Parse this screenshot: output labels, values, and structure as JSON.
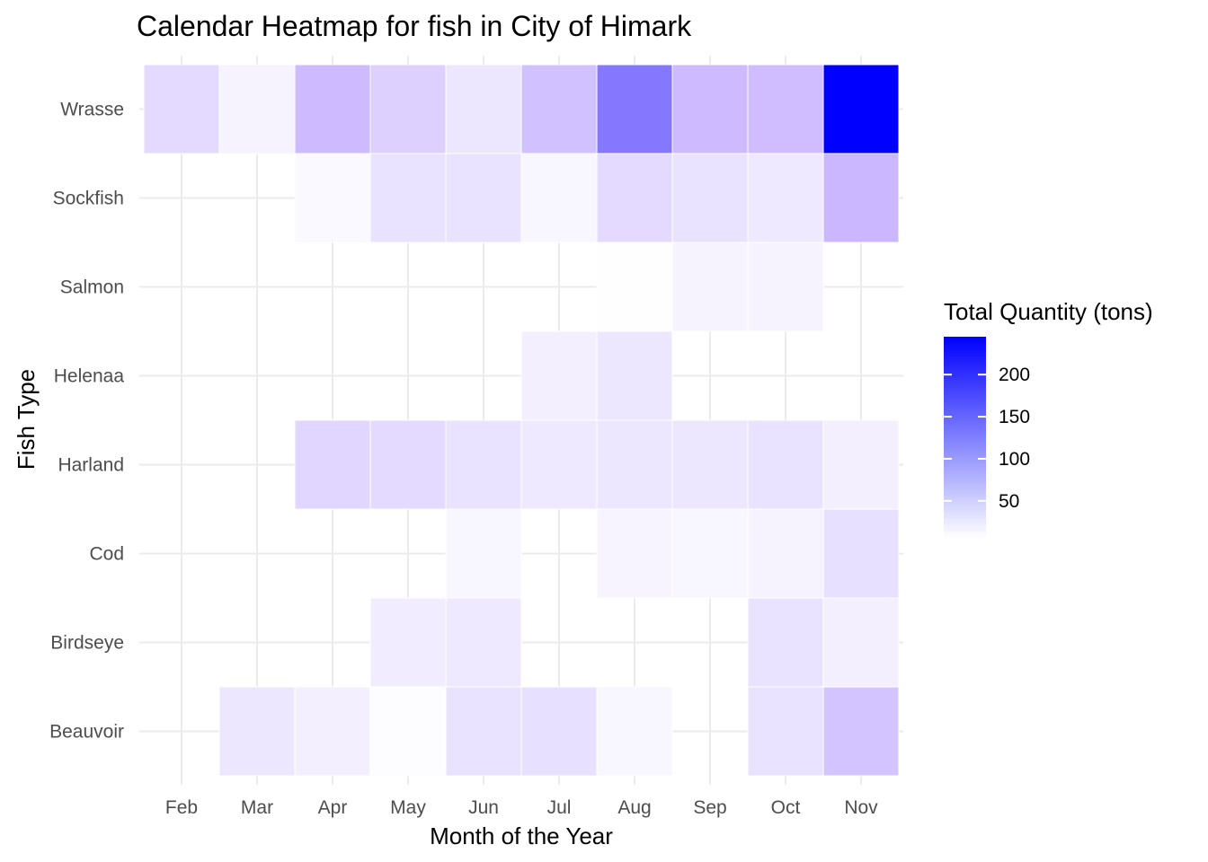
{
  "chart_data": {
    "type": "heatmap",
    "title": "Calendar Heatmap for fish in City of Himark",
    "xlabel": "Month of the Year",
    "ylabel": "Fish Type",
    "x_categories": [
      "Feb",
      "Mar",
      "Apr",
      "May",
      "Jun",
      "Jul",
      "Aug",
      "Sep",
      "Oct",
      "Nov"
    ],
    "y_categories": [
      "Beauvoir",
      "Birdseye",
      "Cod",
      "Harland",
      "Helenaa",
      "Salmon",
      "Sockfish",
      "Wrasse"
    ],
    "grid": true,
    "cells": [
      {
        "y": "Wrasse",
        "x": "Feb",
        "value": 65
      },
      {
        "y": "Wrasse",
        "x": "Mar",
        "value": 25
      },
      {
        "y": "Wrasse",
        "x": "Apr",
        "value": 115
      },
      {
        "y": "Wrasse",
        "x": "May",
        "value": 80
      },
      {
        "y": "Wrasse",
        "x": "Jun",
        "value": 45
      },
      {
        "y": "Wrasse",
        "x": "Jul",
        "value": 105
      },
      {
        "y": "Wrasse",
        "x": "Aug",
        "value": 165
      },
      {
        "y": "Wrasse",
        "x": "Sep",
        "value": 115
      },
      {
        "y": "Wrasse",
        "x": "Oct",
        "value": 110
      },
      {
        "y": "Wrasse",
        "x": "Nov",
        "value": 245
      },
      {
        "y": "Sockfish",
        "x": "Apr",
        "value": 15
      },
      {
        "y": "Sockfish",
        "x": "May",
        "value": 50
      },
      {
        "y": "Sockfish",
        "x": "Jun",
        "value": 50
      },
      {
        "y": "Sockfish",
        "x": "Jul",
        "value": 20
      },
      {
        "y": "Sockfish",
        "x": "Aug",
        "value": 65
      },
      {
        "y": "Sockfish",
        "x": "Sep",
        "value": 50
      },
      {
        "y": "Sockfish",
        "x": "Oct",
        "value": 40
      },
      {
        "y": "Sockfish",
        "x": "Nov",
        "value": 120
      },
      {
        "y": "Salmon",
        "x": "Aug",
        "value": 8
      },
      {
        "y": "Salmon",
        "x": "Sep",
        "value": 25
      },
      {
        "y": "Salmon",
        "x": "Oct",
        "value": 25
      },
      {
        "y": "Helenaa",
        "x": "Jul",
        "value": 30
      },
      {
        "y": "Helenaa",
        "x": "Aug",
        "value": 45
      },
      {
        "y": "Harland",
        "x": "Apr",
        "value": 70
      },
      {
        "y": "Harland",
        "x": "May",
        "value": 65
      },
      {
        "y": "Harland",
        "x": "Jun",
        "value": 50
      },
      {
        "y": "Harland",
        "x": "Jul",
        "value": 40
      },
      {
        "y": "Harland",
        "x": "Aug",
        "value": 45
      },
      {
        "y": "Harland",
        "x": "Sep",
        "value": 45
      },
      {
        "y": "Harland",
        "x": "Oct",
        "value": 50
      },
      {
        "y": "Harland",
        "x": "Nov",
        "value": 30
      },
      {
        "y": "Cod",
        "x": "Jun",
        "value": 20
      },
      {
        "y": "Cod",
        "x": "Aug",
        "value": 22
      },
      {
        "y": "Cod",
        "x": "Sep",
        "value": 20
      },
      {
        "y": "Cod",
        "x": "Oct",
        "value": 25
      },
      {
        "y": "Cod",
        "x": "Nov",
        "value": 55
      },
      {
        "y": "Birdseye",
        "x": "May",
        "value": 35
      },
      {
        "y": "Birdseye",
        "x": "Jun",
        "value": 40
      },
      {
        "y": "Birdseye",
        "x": "Oct",
        "value": 50
      },
      {
        "y": "Birdseye",
        "x": "Nov",
        "value": 30
      },
      {
        "y": "Beauvoir",
        "x": "Mar",
        "value": 45
      },
      {
        "y": "Beauvoir",
        "x": "Apr",
        "value": 30
      },
      {
        "y": "Beauvoir",
        "x": "May",
        "value": 10
      },
      {
        "y": "Beauvoir",
        "x": "Jun",
        "value": 50
      },
      {
        "y": "Beauvoir",
        "x": "Jul",
        "value": 55
      },
      {
        "y": "Beauvoir",
        "x": "Aug",
        "value": 20
      },
      {
        "y": "Beauvoir",
        "x": "Oct",
        "value": 50
      },
      {
        "y": "Beauvoir",
        "x": "Nov",
        "value": 100
      }
    ],
    "legend": {
      "title": "Total Quantity (tons)",
      "placement": "right",
      "breaks": [
        50,
        100,
        150,
        200
      ],
      "range": [
        5,
        245
      ],
      "low_color": "#ffffff",
      "high_color": "#0000ff"
    }
  }
}
